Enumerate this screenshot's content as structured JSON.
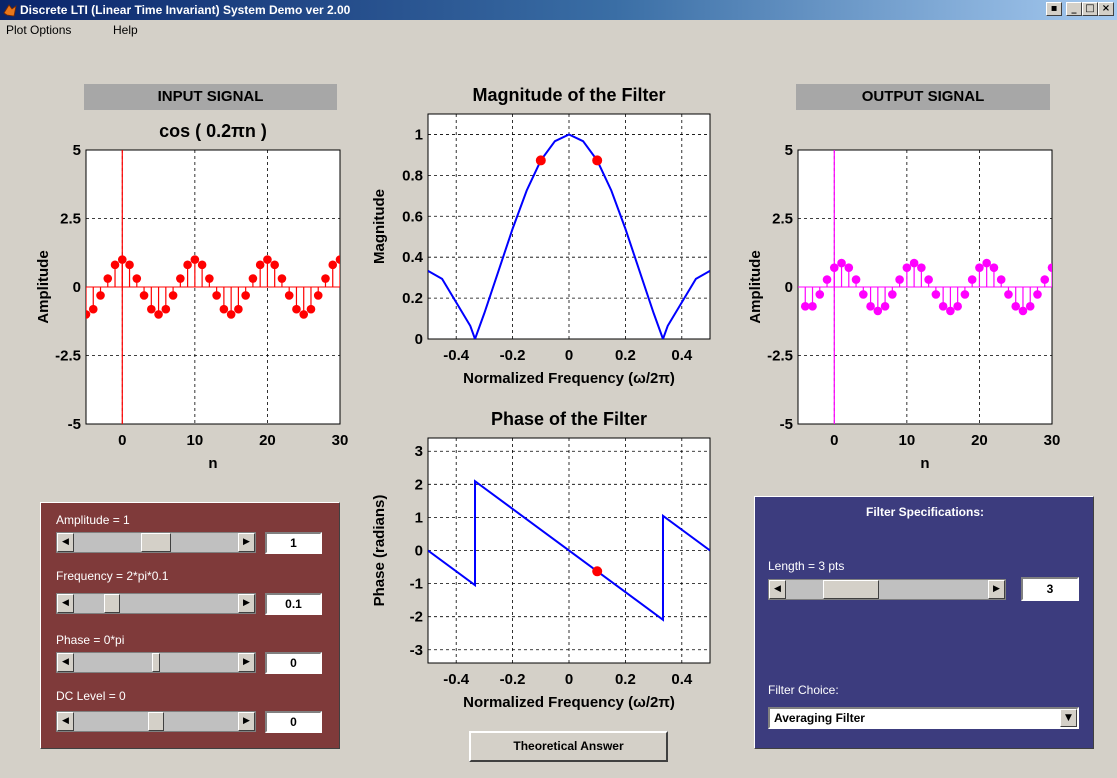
{
  "window": {
    "title": "Discrete LTI (Linear Time Invariant) System Demo ver 2.00",
    "buttons": [
      "help-dock",
      "minimize",
      "maximize",
      "close"
    ]
  },
  "menu": {
    "items": [
      "Plot Options",
      "Help"
    ]
  },
  "input": {
    "section_title": "INPUT SIGNAL",
    "plot_title": "cos ( 0.2πn )"
  },
  "output": {
    "section_title": "OUTPUT SIGNAL"
  },
  "input_controls": {
    "amplitude_label": "Amplitude = 1",
    "amplitude_value": "1",
    "amplitude_level": 0.5,
    "frequency_label": "Frequency = 2*pi*0.1",
    "frequency_value": "0.1",
    "frequency_level": 0.2,
    "phase_label": "Phase = 0*pi",
    "phase_value": "0",
    "phase_level": 0.5,
    "dc_label": "DC Level = 0",
    "dc_value": "0",
    "dc_level": 0.5
  },
  "filter": {
    "heading": "Filter Specifications:",
    "length_label": "Length = 3 pts",
    "length_value": "3",
    "length_level": 0.25,
    "choice_label": "Filter Choice:",
    "choice_value": "Averaging Filter"
  },
  "theoretical_button": "Theoretical Answer",
  "colors": {
    "input": "#ff0000",
    "output": "#ff00ff",
    "response": "#0000ff",
    "marker": "#ff0000",
    "control_panel": "#7f3a3a",
    "filter_panel": "#3c3c7e"
  },
  "chart_data": [
    {
      "type": "stem",
      "name": "input",
      "ylabel": "Amplitude",
      "xlabel": "n",
      "xlim": [
        -5,
        30
      ],
      "ylim": [
        -5,
        5
      ],
      "xticks": [
        "0",
        "10",
        "20",
        "30"
      ],
      "yticks": [
        "5",
        "2.5",
        "0",
        "-2.5",
        "-5"
      ],
      "x": [
        -5,
        -4,
        -3,
        -2,
        -1,
        0,
        1,
        2,
        3,
        4,
        5,
        6,
        7,
        8,
        9,
        10,
        11,
        12,
        13,
        14,
        15,
        16,
        17,
        18,
        19,
        20,
        21,
        22,
        23,
        24,
        25,
        26,
        27,
        28,
        29,
        30
      ],
      "y": [
        -1,
        -0.809,
        -0.309,
        0.309,
        0.809,
        1,
        0.809,
        0.309,
        -0.309,
        -0.809,
        -1,
        -0.809,
        -0.309,
        0.309,
        0.809,
        1,
        0.809,
        0.309,
        -0.309,
        -0.809,
        -1,
        -0.809,
        -0.309,
        0.309,
        0.809,
        1,
        0.809,
        0.309,
        -0.309,
        -0.809,
        -1,
        -0.809,
        -0.309,
        0.309,
        0.809,
        1
      ],
      "marker_line_x": 0
    },
    {
      "type": "line",
      "name": "magnitude",
      "title": "Magnitude of the Filter",
      "xlabel": "Normalized Frequency (ω/2π)",
      "ylabel": "Magnitude",
      "xlim": [
        -0.5,
        0.5
      ],
      "ylim": [
        0,
        1.1
      ],
      "xticks": [
        "-0.4",
        "-0.2",
        "0",
        "0.2",
        "0.4"
      ],
      "yticks": [
        "1",
        "0.8",
        "0.6",
        "0.4",
        "0.2",
        "0"
      ],
      "x": [
        -0.5,
        -0.45,
        -0.4,
        -0.35,
        -0.3333,
        -0.3,
        -0.25,
        -0.2,
        -0.15,
        -0.1,
        -0.05,
        0,
        0.05,
        0.1,
        0.15,
        0.2,
        0.25,
        0.3,
        0.3333,
        0.35,
        0.4,
        0.45,
        0.5
      ],
      "y": [
        0.333,
        0.294,
        0.179,
        0.064,
        0,
        0.127,
        0.333,
        0.539,
        0.726,
        0.873,
        0.967,
        1,
        0.967,
        0.873,
        0.726,
        0.539,
        0.333,
        0.127,
        0,
        0.064,
        0.179,
        0.294,
        0.333
      ],
      "markers": [
        [
          -0.1,
          0.873
        ],
        [
          0.1,
          0.873
        ]
      ]
    },
    {
      "type": "line",
      "name": "phase",
      "title": "Phase of the Filter",
      "xlabel": "Normalized Frequency (ω/2π)",
      "ylabel": "Phase (radians)",
      "xlim": [
        -0.5,
        0.5
      ],
      "ylim": [
        -3.4,
        3.4
      ],
      "xticks": [
        "-0.4",
        "-0.2",
        "0",
        "0.2",
        "0.4"
      ],
      "yticks": [
        "3",
        "2",
        "1",
        "0",
        "-1",
        "-2",
        "-3"
      ],
      "x": [
        -0.5,
        -0.3333,
        -0.3333,
        0.3333,
        0.3333,
        0.5
      ],
      "y": [
        0,
        -1.047,
        2.094,
        -2.094,
        1.047,
        0
      ],
      "markers": [
        [
          0.1,
          -0.628
        ]
      ]
    },
    {
      "type": "stem",
      "name": "output",
      "ylabel": "Amplitude",
      "xlabel": "n",
      "xlim": [
        -5,
        30
      ],
      "ylim": [
        -5,
        5
      ],
      "xticks": [
        "0",
        "10",
        "20",
        "30"
      ],
      "yticks": [
        "5",
        "2.5",
        "0",
        "-2.5",
        "-5"
      ],
      "x": [
        -4,
        -3,
        -2,
        -1,
        0,
        1,
        2,
        3,
        4,
        5,
        6,
        7,
        8,
        9,
        10,
        11,
        12,
        13,
        14,
        15,
        16,
        17,
        18,
        19,
        20,
        21,
        22,
        23,
        24,
        25,
        26,
        27,
        28,
        29,
        30
      ],
      "y": [
        -0.706,
        -0.706,
        -0.27,
        0.27,
        0.706,
        0.873,
        0.706,
        0.27,
        -0.27,
        -0.706,
        -0.873,
        -0.706,
        -0.27,
        0.27,
        0.706,
        0.873,
        0.706,
        0.27,
        -0.27,
        -0.706,
        -0.873,
        -0.706,
        -0.27,
        0.27,
        0.706,
        0.873,
        0.706,
        0.27,
        -0.27,
        -0.706,
        -0.873,
        -0.706,
        -0.27,
        0.27,
        0.706
      ],
      "marker_line_x": 0
    }
  ]
}
